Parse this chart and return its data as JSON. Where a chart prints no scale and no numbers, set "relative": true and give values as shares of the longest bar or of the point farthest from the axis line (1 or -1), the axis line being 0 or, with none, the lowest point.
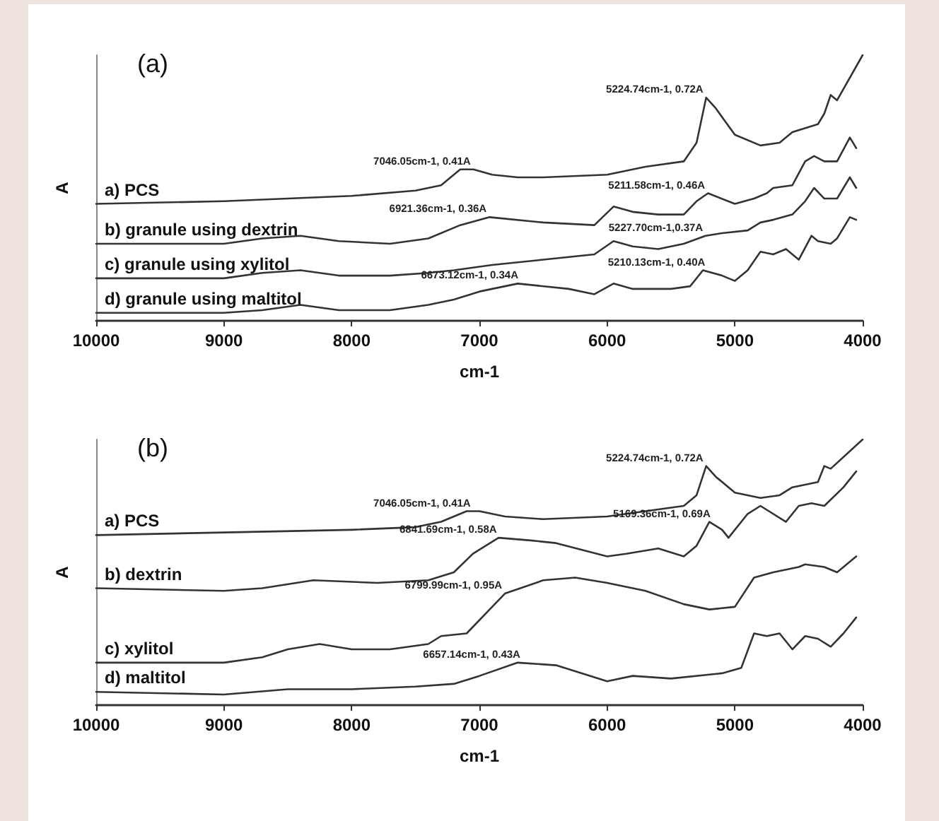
{
  "chart_data": [
    {
      "type": "line",
      "title": "(a)",
      "xlabel": "cm-1",
      "ylabel": "A",
      "xlim": [
        10000,
        4000
      ],
      "xticks": [
        10000,
        9000,
        8000,
        7000,
        6000,
        5000,
        4000
      ],
      "relative": true,
      "legend": false,
      "grid": false,
      "marker": "none",
      "line_style": "solid",
      "series": [
        {
          "name": "a) PCS",
          "color": "#333333",
          "x": [
            10000,
            9000,
            8000,
            7500,
            7300,
            7150,
            7046,
            6900,
            6700,
            6500,
            6000,
            5700,
            5400,
            5300,
            5225,
            5150,
            5000,
            4800,
            4650,
            4550,
            4350,
            4300,
            4250,
            4200,
            4000
          ],
          "values": [
            0.44,
            0.45,
            0.47,
            0.49,
            0.51,
            0.57,
            0.57,
            0.55,
            0.54,
            0.54,
            0.55,
            0.58,
            0.6,
            0.67,
            0.84,
            0.8,
            0.7,
            0.66,
            0.67,
            0.71,
            0.74,
            0.78,
            0.85,
            0.83,
            1
          ]
        },
        {
          "name": "b) granule using dextrin",
          "color": "#333333",
          "x": [
            10000,
            9000,
            8700,
            8400,
            8100,
            7700,
            7400,
            7150,
            6920,
            6500,
            6100,
            5950,
            5800,
            5600,
            5400,
            5300,
            5210,
            5000,
            4850,
            4750,
            4700,
            4550,
            4450,
            4380,
            4300,
            4200,
            4100,
            4050
          ],
          "values": [
            0.29,
            0.29,
            0.31,
            0.32,
            0.3,
            0.29,
            0.31,
            0.36,
            0.39,
            0.37,
            0.36,
            0.43,
            0.41,
            0.4,
            0.4,
            0.45,
            0.48,
            0.44,
            0.46,
            0.48,
            0.5,
            0.51,
            0.6,
            0.62,
            0.6,
            0.6,
            0.69,
            0.65
          ]
        },
        {
          "name": "c) granule using xylitol",
          "color": "#333333",
          "x": [
            10000,
            9000,
            8700,
            8400,
            8100,
            7700,
            7400,
            7200,
            6900,
            6500,
            6100,
            5950,
            5800,
            5600,
            5400,
            5230,
            5100,
            4900,
            4800,
            4700,
            4550,
            4450,
            4380,
            4300,
            4200,
            4100,
            4050
          ],
          "values": [
            0.16,
            0.16,
            0.18,
            0.19,
            0.17,
            0.17,
            0.18,
            0.19,
            0.21,
            0.23,
            0.25,
            0.3,
            0.28,
            0.27,
            0.29,
            0.32,
            0.33,
            0.34,
            0.37,
            0.38,
            0.4,
            0.45,
            0.5,
            0.46,
            0.46,
            0.54,
            0.5
          ]
        },
        {
          "name": "d) granule using maltitol",
          "color": "#333333",
          "x": [
            10000,
            9000,
            8700,
            8400,
            8100,
            7700,
            7400,
            7200,
            7000,
            6700,
            6300,
            6100,
            5950,
            5800,
            5500,
            5350,
            5250,
            5100,
            5000,
            4900,
            4800,
            4700,
            4600,
            4500,
            4400,
            4350,
            4250,
            4200,
            4100,
            4050
          ],
          "values": [
            0.03,
            0.03,
            0.04,
            0.06,
            0.04,
            0.04,
            0.06,
            0.08,
            0.11,
            0.14,
            0.12,
            0.1,
            0.14,
            0.12,
            0.12,
            0.13,
            0.19,
            0.17,
            0.15,
            0.19,
            0.26,
            0.25,
            0.27,
            0.23,
            0.32,
            0.3,
            0.29,
            0.31,
            0.39,
            0.38
          ]
        }
      ],
      "annotations": [
        {
          "text": "7046.05cm-1, 0.41A",
          "x": 7046.05,
          "y": 0.57
        },
        {
          "text": "5224.74cm-1, 0.72A",
          "x": 5224.74,
          "y": 0.84
        },
        {
          "text": "6921.36cm-1, 0.36A",
          "x": 6921.36,
          "y": 0.39
        },
        {
          "text": "5211.58cm-1, 0.46A",
          "x": 5211.58,
          "y": 0.48
        },
        {
          "text": "5227.70cm-1,0.37A",
          "x": 5227.7,
          "y": 0.32
        },
        {
          "text": "5210.13cm-1, 0.40A",
          "x": 5210.13,
          "y": 0.19
        },
        {
          "text": "6673.12cm-1, 0.34A",
          "x": 6673.12,
          "y": 0.14
        }
      ]
    },
    {
      "type": "line",
      "title": "(b)",
      "xlabel": "cm-1",
      "ylabel": "A",
      "xlim": [
        10000,
        4000
      ],
      "xticks": [
        10000,
        9000,
        8000,
        7000,
        6000,
        5000,
        4000
      ],
      "relative": true,
      "legend": false,
      "grid": false,
      "marker": "none",
      "line_style": "solid",
      "series": [
        {
          "name": "a) PCS",
          "color": "#333333",
          "x": [
            10000,
            9000,
            8000,
            7500,
            7300,
            7100,
            7000,
            6800,
            6500,
            6000,
            5700,
            5400,
            5300,
            5225,
            5150,
            5000,
            4800,
            4650,
            4550,
            4350,
            4300,
            4250,
            4000
          ],
          "values": [
            0.64,
            0.65,
            0.66,
            0.67,
            0.69,
            0.73,
            0.73,
            0.71,
            0.7,
            0.71,
            0.73,
            0.75,
            0.79,
            0.9,
            0.86,
            0.8,
            0.78,
            0.79,
            0.82,
            0.84,
            0.9,
            0.89,
            1
          ]
        },
        {
          "name": "b) dextrin",
          "color": "#333333",
          "x": [
            10000,
            9000,
            8700,
            8300,
            7800,
            7400,
            7200,
            7050,
            6850,
            6600,
            6400,
            6000,
            5850,
            5600,
            5400,
            5300,
            5200,
            5100,
            5050,
            4900,
            4800,
            4600,
            4500,
            4400,
            4300,
            4150,
            4050
          ],
          "values": [
            0.44,
            0.43,
            0.44,
            0.47,
            0.46,
            0.47,
            0.5,
            0.57,
            0.63,
            0.62,
            0.61,
            0.56,
            0.57,
            0.59,
            0.56,
            0.6,
            0.69,
            0.66,
            0.63,
            0.72,
            0.75,
            0.69,
            0.75,
            0.76,
            0.75,
            0.82,
            0.88
          ]
        },
        {
          "name": "c) xylitol",
          "color": "#333333",
          "x": [
            10000,
            9000,
            8700,
            8500,
            8250,
            8000,
            7700,
            7400,
            7300,
            7100,
            6900,
            6800,
            6500,
            6250,
            6000,
            5700,
            5400,
            5200,
            5000,
            4850,
            4700,
            4500,
            4450,
            4300,
            4200,
            4100,
            4050
          ],
          "values": [
            0.16,
            0.16,
            0.18,
            0.21,
            0.23,
            0.21,
            0.21,
            0.23,
            0.26,
            0.27,
            0.37,
            0.42,
            0.47,
            0.48,
            0.46,
            0.43,
            0.38,
            0.36,
            0.37,
            0.48,
            0.5,
            0.52,
            0.53,
            0.52,
            0.5,
            0.54,
            0.56
          ]
        },
        {
          "name": "d) maltitol",
          "color": "#333333",
          "x": [
            10000,
            9000,
            8500,
            8000,
            7500,
            7200,
            7000,
            6700,
            6400,
            6000,
            5800,
            5500,
            5100,
            4950,
            4850,
            4750,
            4650,
            4550,
            4450,
            4350,
            4250,
            4150,
            4050
          ],
          "values": [
            0.05,
            0.04,
            0.06,
            0.06,
            0.07,
            0.08,
            0.11,
            0.16,
            0.15,
            0.09,
            0.11,
            0.1,
            0.12,
            0.14,
            0.27,
            0.26,
            0.27,
            0.21,
            0.26,
            0.25,
            0.22,
            0.27,
            0.33
          ]
        }
      ],
      "annotations": [
        {
          "text": "7046.05cm-1, 0.41A",
          "x": 7046.05,
          "y": 0.73
        },
        {
          "text": "5224.74cm-1, 0.72A",
          "x": 5224.74,
          "y": 0.9
        },
        {
          "text": "6841.69cm-1, 0.58A",
          "x": 6841.69,
          "y": 0.63
        },
        {
          "text": "5169.36cm-1, 0.69A",
          "x": 5169.36,
          "y": 0.69
        },
        {
          "text": "6799.99cm-1, 0.95A",
          "x": 6799.99,
          "y": 0.42
        },
        {
          "text": "6657.14cm-1, 0.43A",
          "x": 6657.14,
          "y": 0.16
        }
      ]
    }
  ]
}
